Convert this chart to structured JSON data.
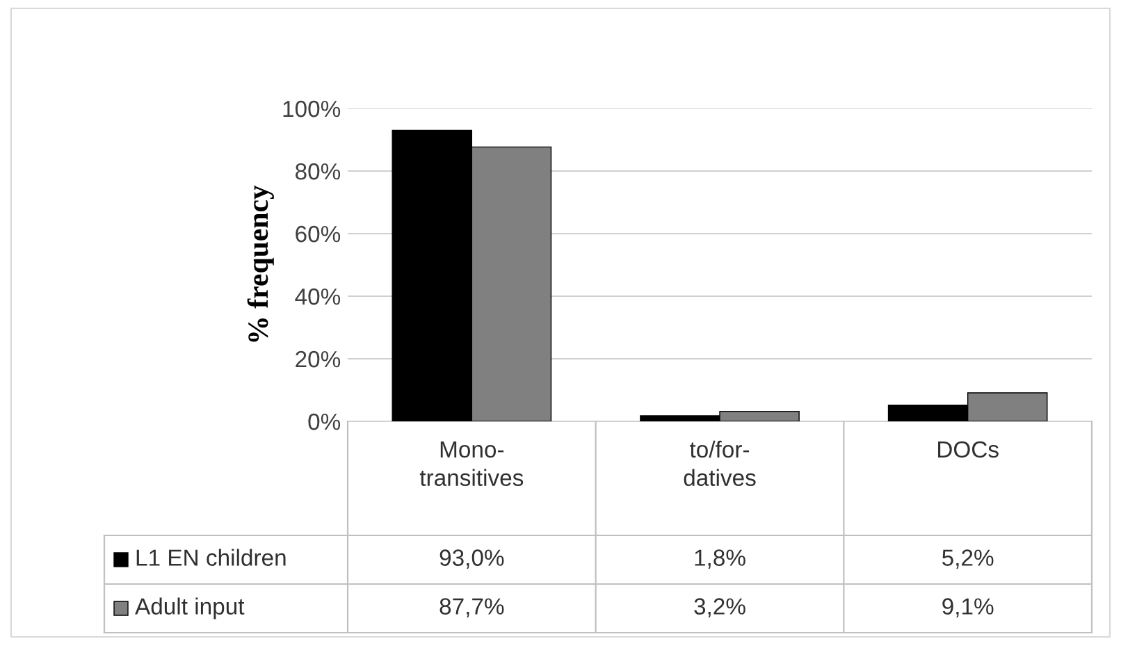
{
  "chart_data": {
    "type": "bar",
    "ylabel": "% frequency",
    "categories": [
      "Mono-\ntransitives",
      "to/for-\ndatives",
      "DOCs"
    ],
    "series": [
      {
        "name": "L1 EN children",
        "color": "#000000",
        "values": [
          93.0,
          1.8,
          5.2
        ],
        "value_labels": [
          "93,0%",
          "1,8%",
          "5,2%"
        ]
      },
      {
        "name": "Adult input",
        "color": "#808080",
        "values": [
          87.7,
          3.2,
          9.1
        ],
        "value_labels": [
          "87,7%",
          "3,2%",
          "9,1%"
        ]
      }
    ],
    "ylim": [
      0,
      100
    ],
    "yticks": [
      {
        "value": 0,
        "label": "0%"
      },
      {
        "value": 20,
        "label": "20%"
      },
      {
        "value": 40,
        "label": "40%"
      },
      {
        "value": 60,
        "label": "60%"
      },
      {
        "value": 80,
        "label": "80%"
      },
      {
        "value": 100,
        "label": "100%"
      }
    ],
    "grid": "y",
    "legend": "bottom"
  }
}
